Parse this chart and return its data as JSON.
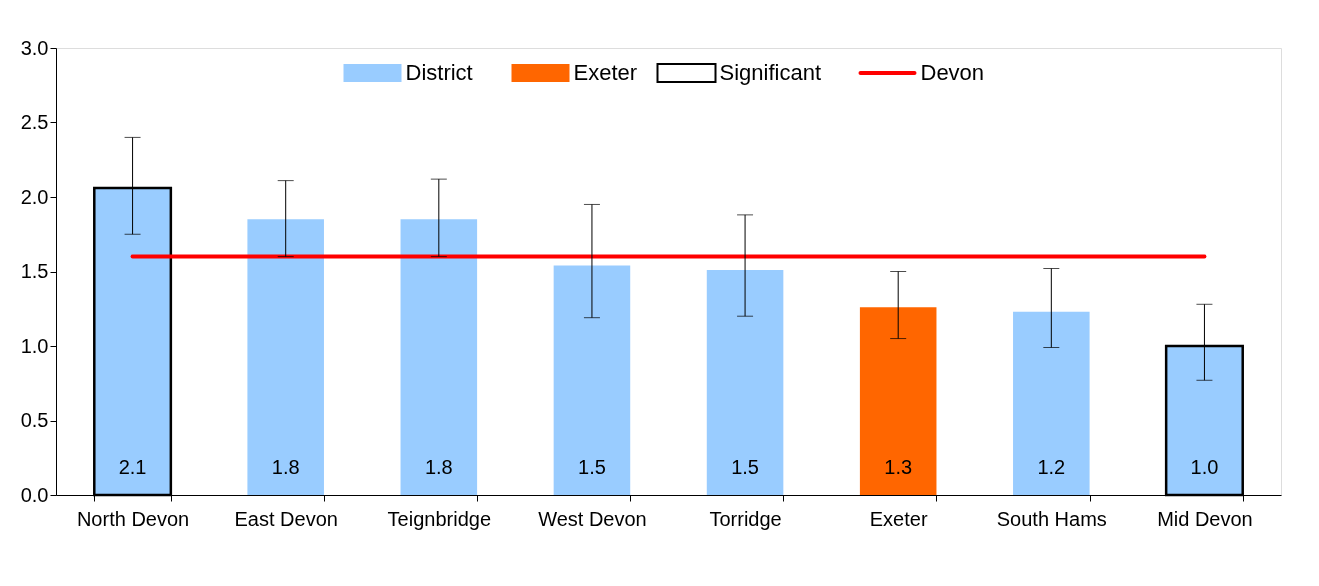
{
  "chart_data": {
    "type": "bar",
    "categories": [
      "North Devon",
      "East Devon",
      "Teignbridge",
      "West Devon",
      "Torridge",
      "Exeter",
      "South Hams",
      "Mid Devon"
    ],
    "series": [
      {
        "name": "District",
        "color": "#99ccff",
        "values": [
          null,
          1.85,
          1.85,
          1.54,
          1.51,
          null,
          1.23,
          null
        ],
        "errors": [
          null,
          [
            1.6,
            2.11
          ],
          [
            1.6,
            2.12
          ],
          [
            1.19,
            1.95
          ],
          [
            1.2,
            1.88
          ],
          null,
          [
            0.99,
            1.52
          ],
          null
        ],
        "value_labels": [
          null,
          "1.8",
          "1.8",
          "1.5",
          "1.5",
          null,
          "1.2",
          null
        ]
      },
      {
        "name": "Exeter",
        "color": "#ff6600",
        "values": [
          null,
          null,
          null,
          null,
          null,
          1.26,
          null,
          null
        ],
        "errors": [
          null,
          null,
          null,
          null,
          null,
          [
            1.05,
            1.5
          ],
          null,
          null
        ],
        "value_labels": [
          null,
          null,
          null,
          null,
          null,
          "1.3",
          null,
          null
        ]
      },
      {
        "name": "Significant",
        "color": "#99ccff",
        "values": [
          2.06,
          null,
          null,
          null,
          null,
          null,
          null,
          1.0
        ],
        "errors": [
          [
            1.75,
            2.4
          ],
          null,
          null,
          null,
          null,
          null,
          null,
          [
            0.77,
            1.28
          ]
        ],
        "value_labels": [
          "2.1",
          null,
          null,
          null,
          null,
          null,
          null,
          "1.0"
        ]
      },
      {
        "name": "Devon",
        "type": "line",
        "color": "#ff0000",
        "values": [
          1.6,
          1.6,
          1.6,
          1.6,
          1.6,
          1.6,
          1.6,
          1.6
        ]
      }
    ],
    "ylim": [
      0,
      3
    ],
    "yticks": [
      {
        "value": 0,
        "label": "0.0"
      },
      0.5,
      {
        "value": 1,
        "label": "1.0"
      },
      1.5,
      {
        "value": 2,
        "label": "2.0"
      },
      2.5,
      {
        "value": 3,
        "label": "3.0"
      }
    ],
    "grid": false,
    "legend": "top"
  }
}
